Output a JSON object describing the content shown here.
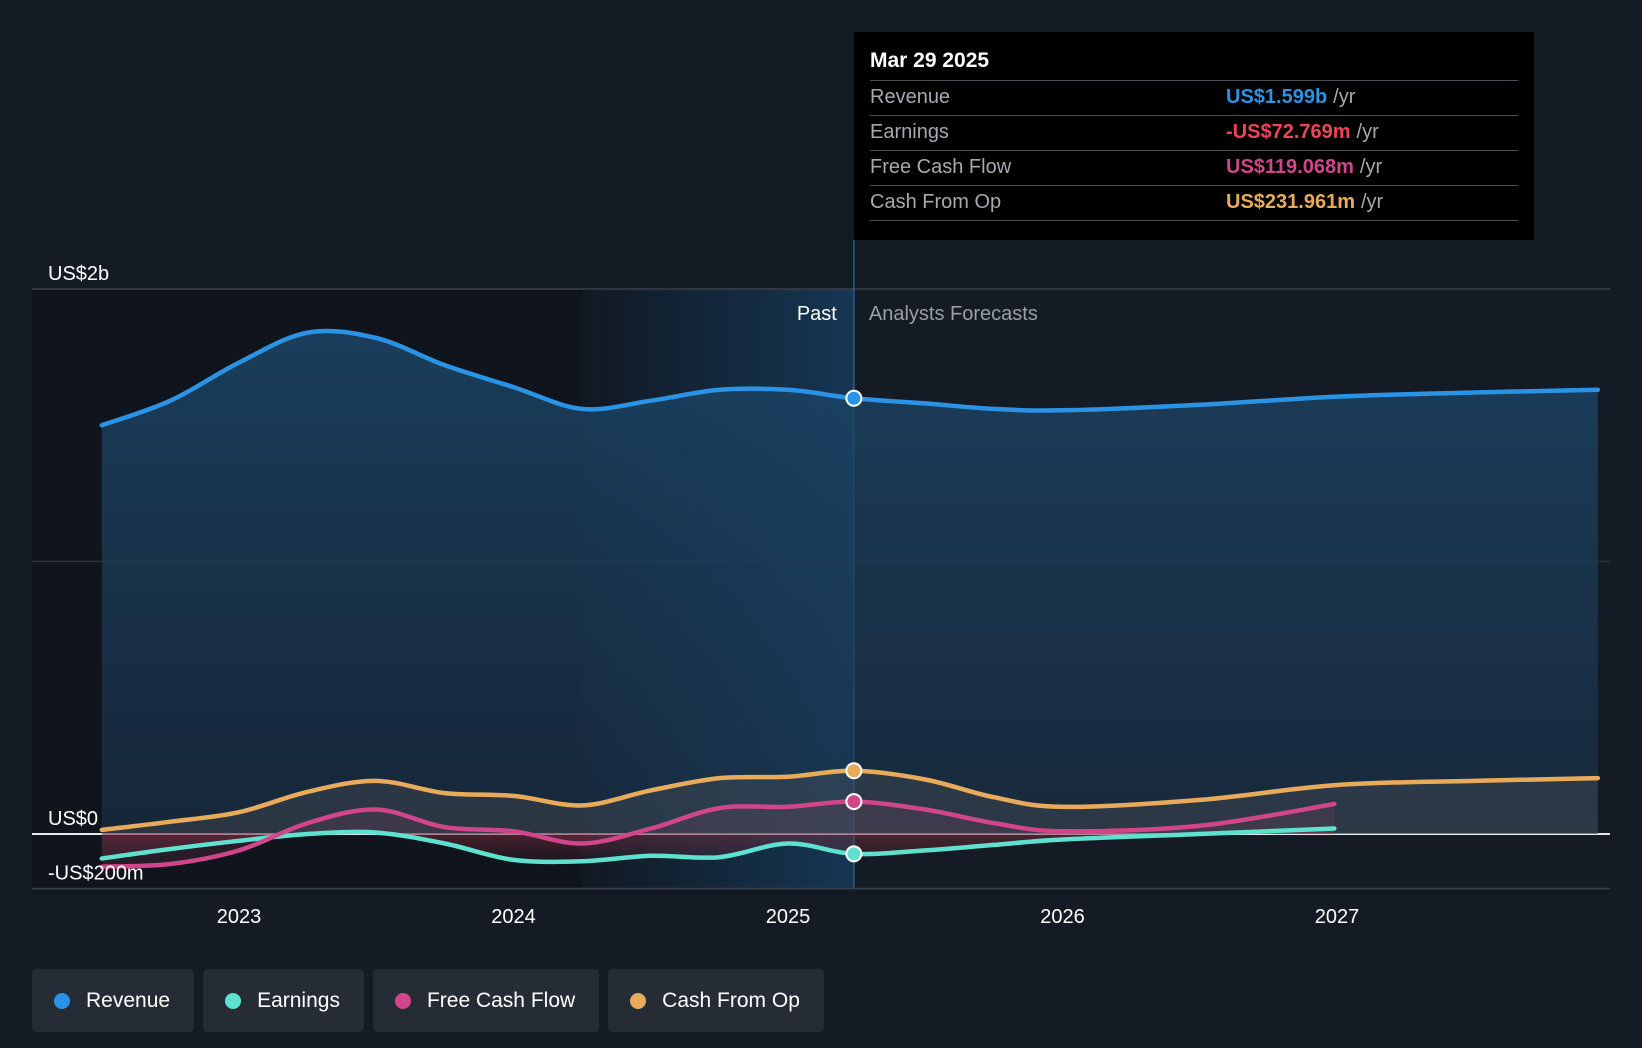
{
  "tooltip": {
    "date": "Mar 29 2025",
    "rows": [
      {
        "label": "Revenue",
        "value": "US$1.599b",
        "unit": "/yr",
        "color": "#2b93e6"
      },
      {
        "label": "Earnings",
        "value": "-US$72.769m",
        "unit": "/yr",
        "color": "#ef4455"
      },
      {
        "label": "Free Cash Flow",
        "value": "US$119.068m",
        "unit": "/yr",
        "color": "#d1468a"
      },
      {
        "label": "Cash From Op",
        "value": "US$231.961m",
        "unit": "/yr",
        "color": "#e8ab5a"
      }
    ]
  },
  "legend": [
    {
      "label": "Revenue",
      "color": "#2b93e6"
    },
    {
      "label": "Earnings",
      "color": "#5ee2cf"
    },
    {
      "label": "Free Cash Flow",
      "color": "#d1468a"
    },
    {
      "label": "Cash From Op",
      "color": "#e8ab5a"
    }
  ],
  "chart_data": {
    "type": "line",
    "title": "",
    "xlabel": "",
    "ylabel": "",
    "x_ticks": [
      "2023",
      "2024",
      "2025",
      "2026",
      "2027"
    ],
    "y_ticks": [
      "US$2b",
      "US$0",
      "-US$200m"
    ],
    "ylim": [
      -200,
      2000
    ],
    "y_unit": "US$m",
    "section_labels": {
      "past": "Past",
      "forecast": "Analysts Forecasts"
    },
    "highlight_date": "Mar 29 2025",
    "past_highlight_start": "2024.25",
    "series": [
      {
        "name": "Revenue",
        "color": "#2b93e6",
        "points": [
          [
            2022.5,
            1500
          ],
          [
            2022.75,
            1590
          ],
          [
            2023.0,
            1730
          ],
          [
            2023.25,
            1840
          ],
          [
            2023.5,
            1820
          ],
          [
            2023.75,
            1720
          ],
          [
            2024.0,
            1640
          ],
          [
            2024.25,
            1560
          ],
          [
            2024.5,
            1590
          ],
          [
            2024.75,
            1630
          ],
          [
            2025.0,
            1630
          ],
          [
            2025.24,
            1599
          ],
          [
            2025.5,
            1580
          ],
          [
            2025.75,
            1560
          ],
          [
            2026.0,
            1555
          ],
          [
            2026.5,
            1575
          ],
          [
            2027.0,
            1605
          ],
          [
            2027.5,
            1620
          ],
          [
            2027.95,
            1630
          ]
        ]
      },
      {
        "name": "Earnings",
        "color": "#5ee2cf",
        "points": [
          [
            2022.5,
            -90
          ],
          [
            2022.75,
            -55
          ],
          [
            2023.0,
            -25
          ],
          [
            2023.25,
            0
          ],
          [
            2023.5,
            5
          ],
          [
            2023.75,
            -35
          ],
          [
            2024.0,
            -95
          ],
          [
            2024.25,
            -100
          ],
          [
            2024.5,
            -80
          ],
          [
            2024.75,
            -85
          ],
          [
            2025.0,
            -35
          ],
          [
            2025.24,
            -73
          ],
          [
            2025.5,
            -60
          ],
          [
            2025.75,
            -40
          ],
          [
            2026.0,
            -20
          ],
          [
            2026.5,
            0
          ],
          [
            2026.99,
            20
          ]
        ]
      },
      {
        "name": "Free Cash Flow",
        "color": "#d1468a",
        "points": [
          [
            2022.5,
            -120
          ],
          [
            2022.75,
            -110
          ],
          [
            2023.0,
            -60
          ],
          [
            2023.25,
            40
          ],
          [
            2023.5,
            90
          ],
          [
            2023.75,
            25
          ],
          [
            2024.0,
            10
          ],
          [
            2024.25,
            -35
          ],
          [
            2024.5,
            20
          ],
          [
            2024.75,
            95
          ],
          [
            2025.0,
            100
          ],
          [
            2025.24,
            119
          ],
          [
            2025.5,
            90
          ],
          [
            2025.75,
            40
          ],
          [
            2026.0,
            10
          ],
          [
            2026.5,
            30
          ],
          [
            2026.99,
            110
          ]
        ]
      },
      {
        "name": "Cash From Op",
        "color": "#e8ab5a",
        "points": [
          [
            2022.5,
            15
          ],
          [
            2022.75,
            45
          ],
          [
            2023.0,
            80
          ],
          [
            2023.25,
            155
          ],
          [
            2023.5,
            195
          ],
          [
            2023.75,
            150
          ],
          [
            2024.0,
            140
          ],
          [
            2024.25,
            105
          ],
          [
            2024.5,
            160
          ],
          [
            2024.75,
            205
          ],
          [
            2025.0,
            210
          ],
          [
            2025.24,
            232
          ],
          [
            2025.5,
            200
          ],
          [
            2025.75,
            135
          ],
          [
            2026.0,
            100
          ],
          [
            2026.5,
            125
          ],
          [
            2027.0,
            180
          ],
          [
            2027.5,
            195
          ],
          [
            2027.95,
            205
          ]
        ]
      }
    ]
  }
}
